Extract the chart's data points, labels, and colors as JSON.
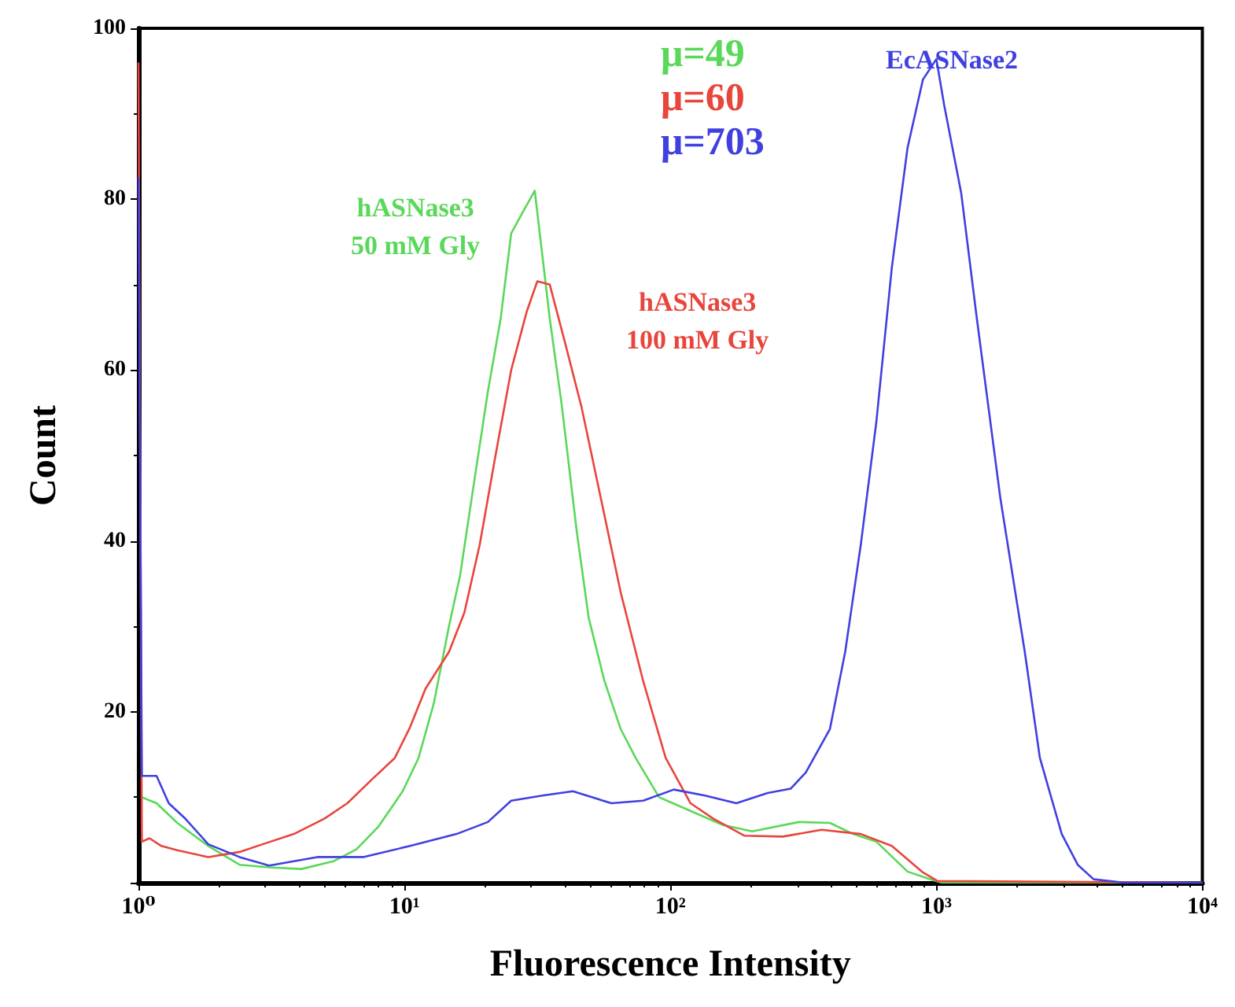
{
  "chart_data": {
    "type": "line",
    "xlabel": "Fluorescence Intensity",
    "ylabel": "Count",
    "log": "x",
    "grid": false,
    "legend": false,
    "marker": "none",
    "line_style": "solid",
    "xlim": [
      1,
      10000
    ],
    "xticks": [
      {
        "value": 1,
        "label": "10⁰"
      },
      {
        "value": 10,
        "label": "10¹"
      },
      {
        "value": 100,
        "label": "10²"
      },
      {
        "value": 1000,
        "label": "10³"
      },
      {
        "value": 10000,
        "label": "10⁴"
      }
    ],
    "ylim": [
      0,
      100
    ],
    "yticks": [
      {
        "value": 0,
        "label": null
      },
      20,
      40,
      60,
      80,
      100
    ],
    "annotations": [
      "μ=49",
      "μ=60",
      "μ=703"
    ],
    "series": [
      {
        "name": "hASNase3\n50 mM Gly",
        "color": "#5ad85a",
        "x": [
          1.03,
          1.17,
          1.4,
          1.83,
          2.4,
          3.1,
          4.1,
          5.4,
          6.6,
          8,
          9.85,
          11.3,
          12.9,
          14.7,
          16.2,
          18,
          20.6,
          23,
          25.2,
          28,
          30.9,
          35.2,
          39,
          44.5,
          49.3,
          56.5,
          65,
          74,
          90.7,
          119,
          156,
          203,
          304,
          398,
          487,
          595,
          779,
          950,
          1050,
          10000
        ],
        "values": [
          10,
          9.3,
          7,
          4.3,
          2.1,
          1.8,
          1.6,
          2.5,
          3.9,
          6.6,
          10.7,
          14.6,
          21,
          30,
          36,
          45.5,
          57.5,
          66,
          76,
          78.6,
          81,
          66,
          56,
          41,
          31,
          23.6,
          18,
          14.6,
          10,
          8.4,
          6.8,
          6,
          7.1,
          7,
          5.7,
          4.8,
          1.3,
          0.4,
          0,
          0
        ]
      },
      {
        "name": "hASNase3\n100 mM Gly",
        "color": "#e8453c",
        "x": [
          1,
          1.03,
          1.1,
          1.22,
          1.4,
          1.83,
          2.4,
          2.93,
          3.84,
          5,
          6.1,
          7.5,
          9.2,
          10.5,
          12,
          14.7,
          16.8,
          19.2,
          22,
          25.2,
          28.8,
          31.6,
          35.2,
          40.4,
          46.3,
          56.5,
          65,
          79,
          96,
          119,
          145,
          190,
          265,
          370,
          520,
          680,
          890,
          1010,
          10000
        ],
        "values": [
          96,
          4.8,
          5.2,
          4.3,
          3.8,
          3,
          3.6,
          4.5,
          5.7,
          7.5,
          9.3,
          12,
          14.6,
          18.2,
          22.7,
          27,
          31.6,
          39.6,
          50,
          60,
          66.8,
          70.4,
          70,
          62.9,
          55.7,
          43,
          34,
          23.6,
          14.6,
          9.3,
          7.5,
          5.5,
          5.4,
          6.2,
          5.7,
          4.3,
          1.2,
          0.2,
          0
        ]
      },
      {
        "name": "EcASNase2",
        "color": "#4040e0",
        "x": [
          1,
          1.03,
          1.17,
          1.3,
          1.5,
          1.83,
          2.4,
          3.1,
          4.7,
          7,
          10.5,
          15.7,
          20.6,
          25.2,
          33,
          43,
          60,
          79,
          103,
          135,
          177,
          232,
          283,
          323,
          398,
          454,
          520,
          595,
          680,
          779,
          890,
          1000,
          1070,
          1240,
          1420,
          1740,
          2150,
          2450,
          2960,
          3400,
          3900,
          5100,
          10000
        ],
        "values": [
          82.5,
          12.5,
          12.5,
          9.3,
          7.5,
          4.5,
          3,
          2,
          3,
          3,
          4.3,
          5.7,
          7.1,
          9.6,
          10.2,
          10.7,
          9.3,
          9.6,
          10.9,
          10.2,
          9.3,
          10.5,
          11,
          12.9,
          18,
          27,
          39.6,
          54,
          72,
          86,
          94,
          96.4,
          91,
          80.7,
          66,
          45,
          27,
          14.6,
          5.7,
          2.1,
          0.4,
          0,
          0
        ]
      }
    ]
  }
}
